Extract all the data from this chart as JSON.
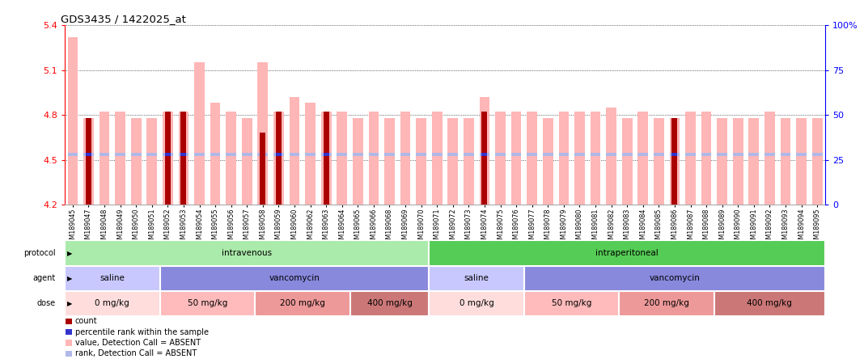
{
  "title": "GDS3435 / 1422025_at",
  "samples": [
    "GSM189045",
    "GSM189047",
    "GSM189048",
    "GSM189049",
    "GSM189050",
    "GSM189051",
    "GSM189052",
    "GSM189053",
    "GSM189054",
    "GSM189055",
    "GSM189056",
    "GSM189057",
    "GSM189058",
    "GSM189059",
    "GSM189060",
    "GSM189062",
    "GSM189063",
    "GSM189064",
    "GSM189065",
    "GSM189066",
    "GSM189068",
    "GSM189069",
    "GSM189070",
    "GSM189071",
    "GSM189072",
    "GSM189073",
    "GSM189074",
    "GSM189075",
    "GSM189076",
    "GSM189077",
    "GSM189078",
    "GSM189079",
    "GSM189080",
    "GSM189081",
    "GSM189082",
    "GSM189083",
    "GSM189084",
    "GSM189085",
    "GSM189086",
    "GSM189087",
    "GSM189088",
    "GSM189089",
    "GSM189090",
    "GSM189091",
    "GSM189092",
    "GSM189093",
    "GSM189094",
    "GSM189095"
  ],
  "value_absent": [
    5.32,
    4.78,
    4.82,
    4.82,
    4.78,
    4.78,
    4.82,
    4.82,
    5.15,
    4.88,
    4.82,
    4.78,
    5.15,
    4.82,
    4.92,
    4.88,
    4.82,
    4.82,
    4.78,
    4.82,
    4.78,
    4.82,
    4.78,
    4.82,
    4.78,
    4.78,
    4.92,
    4.82,
    4.82,
    4.82,
    4.78,
    4.82,
    4.82,
    4.82,
    4.85,
    4.78,
    4.82,
    4.78,
    4.78,
    4.82,
    4.82,
    4.78,
    4.78,
    4.78,
    4.82,
    4.78,
    4.78,
    4.78
  ],
  "rank_absent_pct": [
    28,
    28,
    28,
    28,
    28,
    28,
    28,
    28,
    28,
    28,
    28,
    28,
    28,
    28,
    28,
    28,
    28,
    28,
    28,
    28,
    28,
    28,
    28,
    28,
    28,
    28,
    28,
    28,
    28,
    28,
    28,
    28,
    28,
    28,
    28,
    28,
    28,
    28,
    28,
    28,
    28,
    28,
    28,
    28,
    28,
    28,
    28,
    28
  ],
  "count_top": [
    0.0,
    4.78,
    0.0,
    0.0,
    0.0,
    0.0,
    4.82,
    4.82,
    0.0,
    0.0,
    0.0,
    0.0,
    4.68,
    4.82,
    0.0,
    0.0,
    4.82,
    0.0,
    0.0,
    0.0,
    0.0,
    0.0,
    0.0,
    0.0,
    0.0,
    0.0,
    4.82,
    0.0,
    0.0,
    0.0,
    0.0,
    0.0,
    0.0,
    0.0,
    0.0,
    0.0,
    0.0,
    0.0,
    4.78,
    0.0,
    0.0,
    0.0,
    0.0,
    0.0,
    0.0,
    0.0,
    0.0,
    0.0
  ],
  "percentile_pct": [
    0,
    28,
    0,
    0,
    0,
    0,
    28,
    28,
    0,
    0,
    0,
    0,
    0,
    28,
    0,
    0,
    28,
    0,
    0,
    0,
    0,
    0,
    0,
    0,
    0,
    0,
    28,
    0,
    0,
    0,
    0,
    0,
    0,
    0,
    0,
    0,
    0,
    0,
    28,
    0,
    0,
    0,
    0,
    0,
    0,
    0,
    0,
    0
  ],
  "ylim": [
    4.2,
    5.4
  ],
  "yticks_left": [
    4.2,
    4.5,
    4.8,
    5.1,
    5.4
  ],
  "yticks_right": [
    0,
    25,
    50,
    75,
    100
  ],
  "ytick_labels_right": [
    "0",
    "25",
    "50",
    "75",
    "100%"
  ],
  "color_value_absent": "#ffb6b6",
  "color_rank_absent": "#b0b8e8",
  "color_count": "#aa0000",
  "color_percentile": "#3333cc",
  "bar_width": 0.65,
  "protocol_bands": [
    {
      "label": "intravenous",
      "start": 0,
      "end": 23,
      "color": "#aaeaaa"
    },
    {
      "label": "intraperitoneal",
      "start": 23,
      "end": 48,
      "color": "#55cc55"
    }
  ],
  "agent_bands": [
    {
      "label": "saline",
      "start": 0,
      "end": 6,
      "color": "#c8c8ff"
    },
    {
      "label": "vancomycin",
      "start": 6,
      "end": 23,
      "color": "#8888dd"
    },
    {
      "label": "saline",
      "start": 23,
      "end": 29,
      "color": "#c8c8ff"
    },
    {
      "label": "vancomycin",
      "start": 29,
      "end": 48,
      "color": "#8888dd"
    }
  ],
  "dose_bands": [
    {
      "label": "0 mg/kg",
      "start": 0,
      "end": 6,
      "color": "#ffdddd"
    },
    {
      "label": "50 mg/kg",
      "start": 6,
      "end": 12,
      "color": "#ffbbbb"
    },
    {
      "label": "200 mg/kg",
      "start": 12,
      "end": 18,
      "color": "#ee9999"
    },
    {
      "label": "400 mg/kg",
      "start": 18,
      "end": 23,
      "color": "#cc7777"
    },
    {
      "label": "0 mg/kg",
      "start": 23,
      "end": 29,
      "color": "#ffdddd"
    },
    {
      "label": "50 mg/kg",
      "start": 29,
      "end": 35,
      "color": "#ffbbbb"
    },
    {
      "label": "200 mg/kg",
      "start": 35,
      "end": 41,
      "color": "#ee9999"
    },
    {
      "label": "400 mg/kg",
      "start": 41,
      "end": 48,
      "color": "#cc7777"
    }
  ],
  "legend_items": [
    {
      "color": "#aa0000",
      "label": "count"
    },
    {
      "color": "#3333cc",
      "label": "percentile rank within the sample"
    },
    {
      "color": "#ffb6b6",
      "label": "value, Detection Call = ABSENT"
    },
    {
      "color": "#b0b8e8",
      "label": "rank, Detection Call = ABSENT"
    }
  ]
}
